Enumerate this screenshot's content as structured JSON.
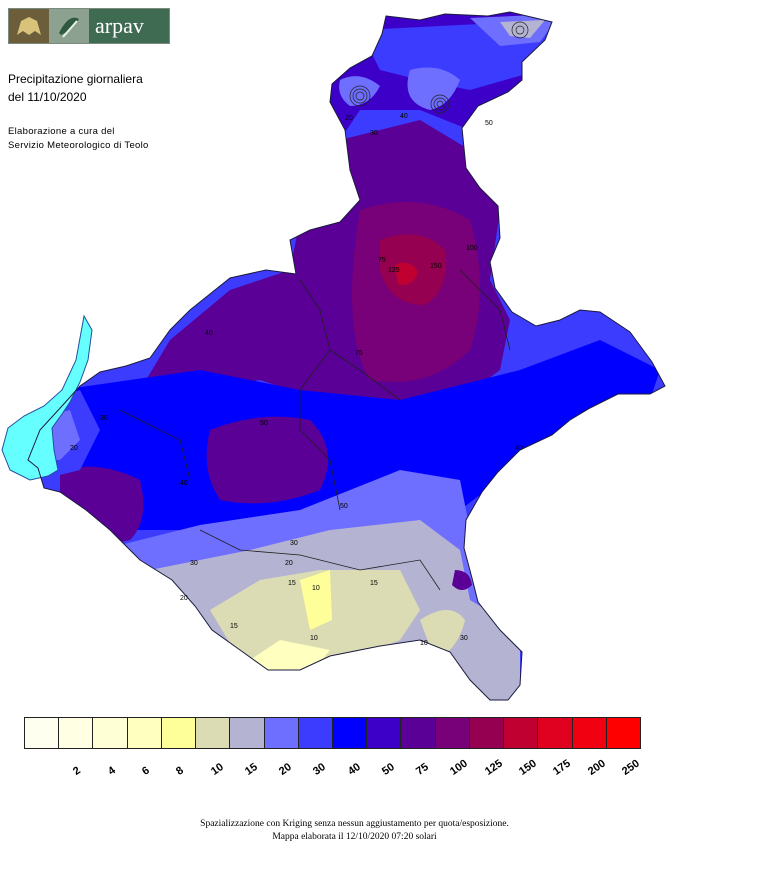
{
  "header": {
    "logo_text": "arpav",
    "title_line1": "Precipitazione giornaliera",
    "title_line2": "del 11/10/2020",
    "credit_line1": "Elaborazione a cura del",
    "credit_line2": "Servizio Meteorologico di Teolo"
  },
  "legend": {
    "classes": [
      {
        "label": "",
        "color": "#fffff0"
      },
      {
        "label": "2",
        "color": "#ffffe4"
      },
      {
        "label": "4",
        "color": "#ffffd6"
      },
      {
        "label": "6",
        "color": "#ffffc0"
      },
      {
        "label": "8",
        "color": "#ffff99"
      },
      {
        "label": "10",
        "color": "#dcdcb4"
      },
      {
        "label": "15",
        "color": "#b4b4d2"
      },
      {
        "label": "20",
        "color": "#6e6eff"
      },
      {
        "label": "30",
        "color": "#3c3cff"
      },
      {
        "label": "40",
        "color": "#0000ff"
      },
      {
        "label": "50",
        "color": "#3c00c8"
      },
      {
        "label": "75",
        "color": "#5a0096"
      },
      {
        "label": "100",
        "color": "#780078"
      },
      {
        "label": "125",
        "color": "#960050"
      },
      {
        "label": "150",
        "color": "#c00030"
      },
      {
        "label": "175",
        "color": "#e00020"
      },
      {
        "label": "200",
        "color": "#f00010"
      },
      {
        "label": "250",
        "color": "#ff0000"
      }
    ]
  },
  "map_labels": [
    "20",
    "30",
    "40",
    "50",
    "75",
    "100",
    "125",
    "150",
    "40",
    "30",
    "20",
    "15",
    "10",
    "10",
    "15",
    "20",
    "30",
    "50",
    "75",
    "30",
    "40",
    "50",
    "40",
    "30",
    "20",
    "15",
    "10"
  ],
  "footer": {
    "line1": "Spazializzazione con Kriging senza nessun aggiustamento per quota/esposizione.",
    "line2": "Mappa elaborata il 12/10/2020 07:20 solari"
  }
}
